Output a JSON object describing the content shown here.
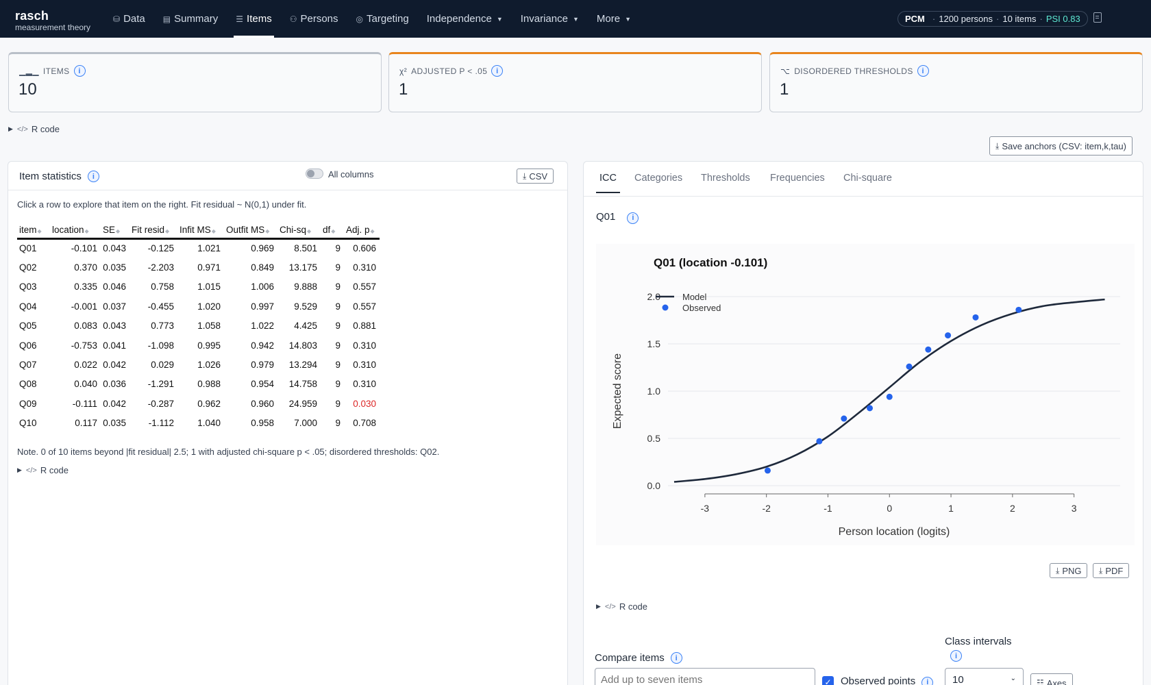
{
  "brand": {
    "name": "rasch",
    "tagline": "measurement theory"
  },
  "nav": [
    {
      "label": "Data",
      "icon": "database-icon",
      "glyph": "⛁"
    },
    {
      "label": "Summary",
      "icon": "summary-icon",
      "glyph": "▤"
    },
    {
      "label": "Items",
      "icon": "list-icon",
      "glyph": "☰",
      "active": true
    },
    {
      "label": "Persons",
      "icon": "persons-icon",
      "glyph": "⚇"
    },
    {
      "label": "Targeting",
      "icon": "target-icon",
      "glyph": "◎"
    },
    {
      "label": "Independence",
      "dropdown": true
    },
    {
      "label": "Invariance",
      "dropdown": true
    },
    {
      "label": "More",
      "dropdown": true
    }
  ],
  "model_pill": {
    "model": "PCM",
    "persons": "1200 persons",
    "items": "10 items",
    "psi": "PSI 0.83"
  },
  "stats": [
    {
      "label": "ITEMS",
      "value": "10",
      "icon": "bars-icon"
    },
    {
      "label": "ADJUSTED P < .05",
      "value": "1",
      "icon": "chi-square-icon"
    },
    {
      "label": "DISORDERED THRESHOLDS",
      "value": "1",
      "icon": "disorder-icon"
    }
  ],
  "rcode_label": "R code",
  "save_anchors_label": "Save anchors (CSV: item,k,tau)",
  "item_panel": {
    "title": "Item statistics",
    "toggle_label": "All columns",
    "csv_label": "CSV",
    "hint": "Click a row to explore that item on the right. Fit residual ~ N(0,1) under fit.",
    "columns": [
      "item",
      "location",
      "SE",
      "Fit resid",
      "Infit MS",
      "Outfit MS",
      "Chi-sq",
      "df",
      "Adj. p"
    ],
    "rows": [
      [
        "Q01",
        "-0.101",
        "0.043",
        "-0.125",
        "1.021",
        "0.969",
        "8.501",
        "9",
        "0.606"
      ],
      [
        "Q02",
        "0.370",
        "0.035",
        "-2.203",
        "0.971",
        "0.849",
        "13.175",
        "9",
        "0.310"
      ],
      [
        "Q03",
        "0.335",
        "0.046",
        "0.758",
        "1.015",
        "1.006",
        "9.888",
        "9",
        "0.557"
      ],
      [
        "Q04",
        "-0.001",
        "0.037",
        "-0.455",
        "1.020",
        "0.997",
        "9.529",
        "9",
        "0.557"
      ],
      [
        "Q05",
        "0.083",
        "0.043",
        "0.773",
        "1.058",
        "1.022",
        "4.425",
        "9",
        "0.881"
      ],
      [
        "Q06",
        "-0.753",
        "0.041",
        "-1.098",
        "0.995",
        "0.942",
        "14.803",
        "9",
        "0.310"
      ],
      [
        "Q07",
        "0.022",
        "0.042",
        "0.029",
        "1.026",
        "0.979",
        "13.294",
        "9",
        "0.310"
      ],
      [
        "Q08",
        "0.040",
        "0.036",
        "-1.291",
        "0.988",
        "0.954",
        "14.758",
        "9",
        "0.310"
      ],
      [
        "Q09",
        "-0.111",
        "0.042",
        "-0.287",
        "0.962",
        "0.960",
        "24.959",
        "9",
        "0.030"
      ],
      [
        "Q10",
        "0.117",
        "0.035",
        "-1.112",
        "1.040",
        "0.958",
        "7.000",
        "9",
        "0.708"
      ]
    ],
    "significant_row": 8,
    "note": "Note. 0 of 10 items beyond |fit residual| 2.5; 1 with adjusted chi-square p < .05; disordered thresholds: Q02."
  },
  "right_panel": {
    "tabs": [
      "ICC",
      "Categories",
      "Thresholds",
      "Frequencies",
      "Chi-square"
    ],
    "active_tab": 0,
    "selected_item": "Q01",
    "png_label": "PNG",
    "pdf_label": "PDF",
    "compare_label": "Compare items",
    "compare_placeholder": "Add up to seven items",
    "observed_label": "Observed points",
    "class_intervals_label": "Class intervals",
    "class_intervals_value": "10",
    "axes_label": "Axes"
  },
  "chart_data": {
    "type": "line",
    "title": "Q01  (location -0.101)",
    "xlabel": "Person location (logits)",
    "ylabel": "Expected score",
    "xlim": [
      -3.6,
      3.75
    ],
    "ylim": [
      0,
      2.0
    ],
    "xticks": [
      -3,
      -2,
      -1,
      0,
      1,
      2,
      3
    ],
    "yticks": [
      0.0,
      0.5,
      1.0,
      1.5,
      2.0
    ],
    "grid": true,
    "legend": "top-left",
    "series": [
      {
        "name": "Model",
        "kind": "line",
        "color": "#1e293b",
        "x": [
          -3.5,
          -3.0,
          -2.5,
          -2.0,
          -1.5,
          -1.0,
          -0.5,
          0.0,
          0.5,
          1.0,
          1.5,
          2.0,
          2.5,
          3.0,
          3.5
        ],
        "y": [
          0.04,
          0.07,
          0.12,
          0.2,
          0.33,
          0.52,
          0.77,
          1.04,
          1.31,
          1.53,
          1.7,
          1.82,
          1.9,
          1.94,
          1.97
        ]
      },
      {
        "name": "Observed",
        "kind": "scatter",
        "color": "#2563eb",
        "x": [
          -1.98,
          -1.14,
          -0.74,
          -0.32,
          0.0,
          0.32,
          0.63,
          0.95,
          1.4,
          2.1
        ],
        "y": [
          0.16,
          0.47,
          0.71,
          0.82,
          0.94,
          1.26,
          1.44,
          1.59,
          1.78,
          1.86
        ]
      }
    ]
  }
}
